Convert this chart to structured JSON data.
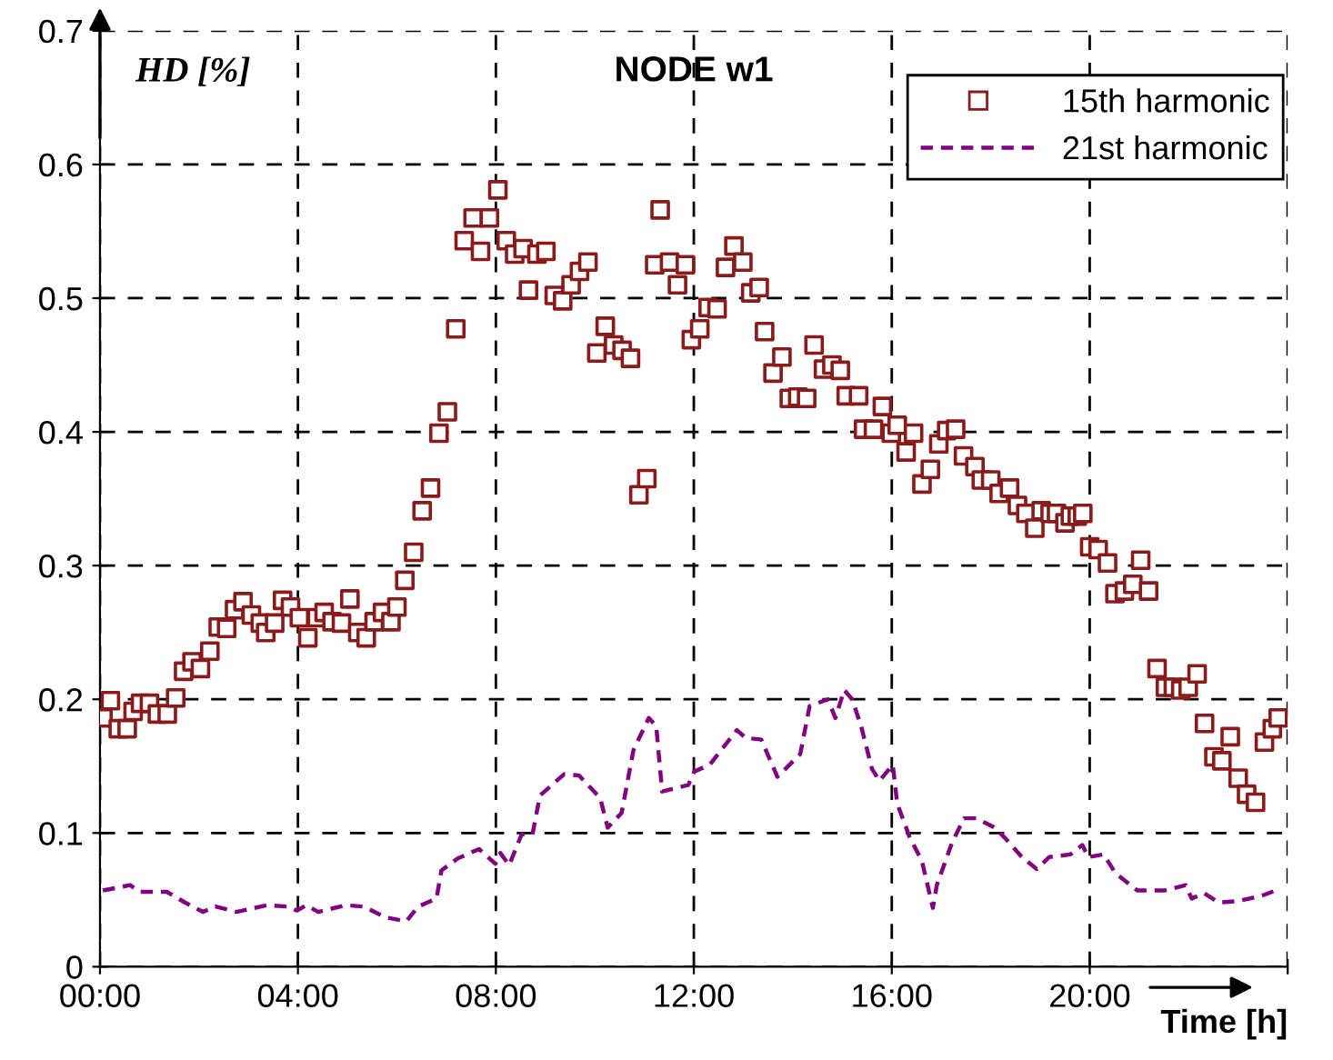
{
  "chart_data": {
    "type": "scatter",
    "title": "NODE w1",
    "ylabel": "HD [%]",
    "xlabel": "Time [h]",
    "xlim": [
      0,
      24
    ],
    "ylim": [
      0,
      0.7
    ],
    "xticks": [
      {
        "value": 0,
        "label": "00:00"
      },
      {
        "value": 4,
        "label": "04:00"
      },
      {
        "value": 8,
        "label": "08:00"
      },
      {
        "value": 12,
        "label": "12:00"
      },
      {
        "value": 16,
        "label": "16:00"
      },
      {
        "value": 20,
        "label": "20:00"
      },
      {
        "value": 24,
        "label": null
      }
    ],
    "yticks": [
      0,
      0.1,
      0.2,
      0.3,
      0.4,
      0.5,
      0.6,
      0.7
    ],
    "grid": true,
    "legend": "top right",
    "series": [
      {
        "name": "15th harmonic",
        "marker": "square",
        "color": "#8b1a1a",
        "x": [
          0.06,
          0.21,
          0.37,
          0.55,
          0.67,
          0.82,
          1.0,
          1.16,
          1.36,
          1.53,
          1.69,
          1.86,
          2.03,
          2.22,
          2.39,
          2.56,
          2.72,
          2.89,
          3.06,
          3.24,
          3.35,
          3.53,
          3.69,
          3.85,
          4.03,
          4.2,
          4.38,
          4.53,
          4.69,
          4.88,
          5.05,
          5.21,
          5.38,
          5.54,
          5.71,
          5.88,
          6.0,
          6.16,
          6.34,
          6.51,
          6.68,
          6.85,
          7.02,
          7.19,
          7.36,
          7.54,
          7.69,
          7.87,
          8.04,
          8.21,
          8.38,
          8.55,
          8.66,
          8.83,
          9.01,
          9.18,
          9.35,
          9.52,
          9.69,
          9.86,
          10.04,
          10.21,
          10.38,
          10.55,
          10.72,
          10.89,
          11.05,
          11.21,
          11.32,
          11.51,
          11.67,
          11.83,
          11.95,
          12.12,
          12.29,
          12.47,
          12.64,
          12.81,
          12.99,
          13.15,
          13.32,
          13.43,
          13.6,
          13.78,
          13.93,
          14.1,
          14.28,
          14.43,
          14.62,
          14.79,
          14.96,
          15.08,
          15.33,
          15.43,
          15.63,
          15.81,
          15.99,
          16.11,
          16.29,
          16.44,
          16.61,
          16.78,
          16.95,
          17.11,
          17.29,
          17.45,
          17.68,
          17.81,
          18.0,
          18.17,
          18.38,
          18.54,
          18.71,
          18.89,
          19.02,
          19.2,
          19.33,
          19.5,
          19.61,
          19.75,
          19.86,
          20.0,
          20.17,
          20.36,
          20.51,
          20.7,
          20.87,
          21.03,
          21.19,
          21.36,
          21.53,
          21.69,
          21.84,
          21.99,
          22.17,
          22.32,
          22.51,
          22.67,
          22.84,
          23.0,
          23.17,
          23.35,
          23.53,
          23.69,
          23.81
        ],
        "values": [
          0.186,
          0.199,
          0.178,
          0.178,
          0.191,
          0.197,
          0.197,
          0.189,
          0.189,
          0.201,
          0.221,
          0.228,
          0.223,
          0.236,
          0.254,
          0.253,
          0.267,
          0.273,
          0.263,
          0.257,
          0.25,
          0.257,
          0.274,
          0.269,
          0.261,
          0.246,
          0.261,
          0.265,
          0.258,
          0.257,
          0.275,
          0.25,
          0.246,
          0.258,
          0.265,
          0.258,
          0.269,
          0.289,
          0.31,
          0.341,
          0.358,
          0.399,
          0.415,
          0.477,
          0.543,
          0.56,
          0.535,
          0.56,
          0.581,
          0.543,
          0.533,
          0.537,
          0.506,
          0.533,
          0.535,
          0.502,
          0.498,
          0.51,
          0.52,
          0.527,
          0.459,
          0.479,
          0.465,
          0.461,
          0.455,
          0.353,
          0.365,
          0.525,
          0.566,
          0.527,
          0.51,
          0.525,
          0.469,
          0.477,
          0.493,
          0.492,
          0.523,
          0.539,
          0.527,
          0.504,
          0.508,
          0.475,
          0.444,
          0.456,
          0.425,
          0.426,
          0.425,
          0.465,
          0.447,
          0.45,
          0.446,
          0.427,
          0.427,
          0.402,
          0.402,
          0.419,
          0.399,
          0.405,
          0.385,
          0.399,
          0.361,
          0.372,
          0.391,
          0.401,
          0.402,
          0.382,
          0.374,
          0.364,
          0.364,
          0.354,
          0.358,
          0.345,
          0.339,
          0.328,
          0.341,
          0.339,
          0.339,
          0.332,
          0.337,
          0.337,
          0.339,
          0.314,
          0.312,
          0.302,
          0.279,
          0.281,
          0.286,
          0.304,
          0.281,
          0.223,
          0.209,
          0.209,
          0.207,
          0.209,
          0.219,
          0.182,
          0.157,
          0.154,
          0.172,
          0.141,
          0.129,
          0.123,
          0.168,
          0.178,
          0.186
        ]
      },
      {
        "name": "21st harmonic",
        "type": "line",
        "line_style": "dashed",
        "marker": "none",
        "color": "#800080",
        "x": [
          0.06,
          0.61,
          0.8,
          1.35,
          1.72,
          2.08,
          2.33,
          2.76,
          3.37,
          3.8,
          3.98,
          4.17,
          4.41,
          4.96,
          5.33,
          5.76,
          6.19,
          6.43,
          6.8,
          6.9,
          7.23,
          7.66,
          7.99,
          8.09,
          8.27,
          8.52,
          8.74,
          8.89,
          9.38,
          9.68,
          10.11,
          10.26,
          10.54,
          10.78,
          11.09,
          11.24,
          11.36,
          11.89,
          12.01,
          12.32,
          12.87,
          13.05,
          13.36,
          13.69,
          14.15,
          14.34,
          14.71,
          14.86,
          15.04,
          15.2,
          15.38,
          15.6,
          15.75,
          16.02,
          16.11,
          16.36,
          16.61,
          16.83,
          16.91,
          17.22,
          17.46,
          17.71,
          18.08,
          18.32,
          18.63,
          18.93,
          19.18,
          19.61,
          19.85,
          19.97,
          20.28,
          20.52,
          20.96,
          21.51,
          21.94,
          22.06,
          22.31,
          22.61,
          22.98,
          23.47,
          23.83
        ],
        "values": [
          0.057,
          0.061,
          0.056,
          0.056,
          0.048,
          0.041,
          0.045,
          0.041,
          0.046,
          0.045,
          0.042,
          0.046,
          0.041,
          0.046,
          0.045,
          0.037,
          0.034,
          0.045,
          0.051,
          0.072,
          0.081,
          0.088,
          0.077,
          0.085,
          0.076,
          0.099,
          0.099,
          0.128,
          0.144,
          0.143,
          0.126,
          0.104,
          0.115,
          0.162,
          0.186,
          0.18,
          0.131,
          0.136,
          0.146,
          0.151,
          0.177,
          0.171,
          0.17,
          0.142,
          0.159,
          0.195,
          0.2,
          0.186,
          0.207,
          0.2,
          0.18,
          0.148,
          0.139,
          0.151,
          0.122,
          0.097,
          0.079,
          0.044,
          0.061,
          0.093,
          0.111,
          0.111,
          0.104,
          0.095,
          0.082,
          0.073,
          0.082,
          0.084,
          0.091,
          0.082,
          0.084,
          0.07,
          0.057,
          0.057,
          0.061,
          0.051,
          0.055,
          0.048,
          0.049,
          0.053,
          0.058
        ]
      }
    ]
  }
}
